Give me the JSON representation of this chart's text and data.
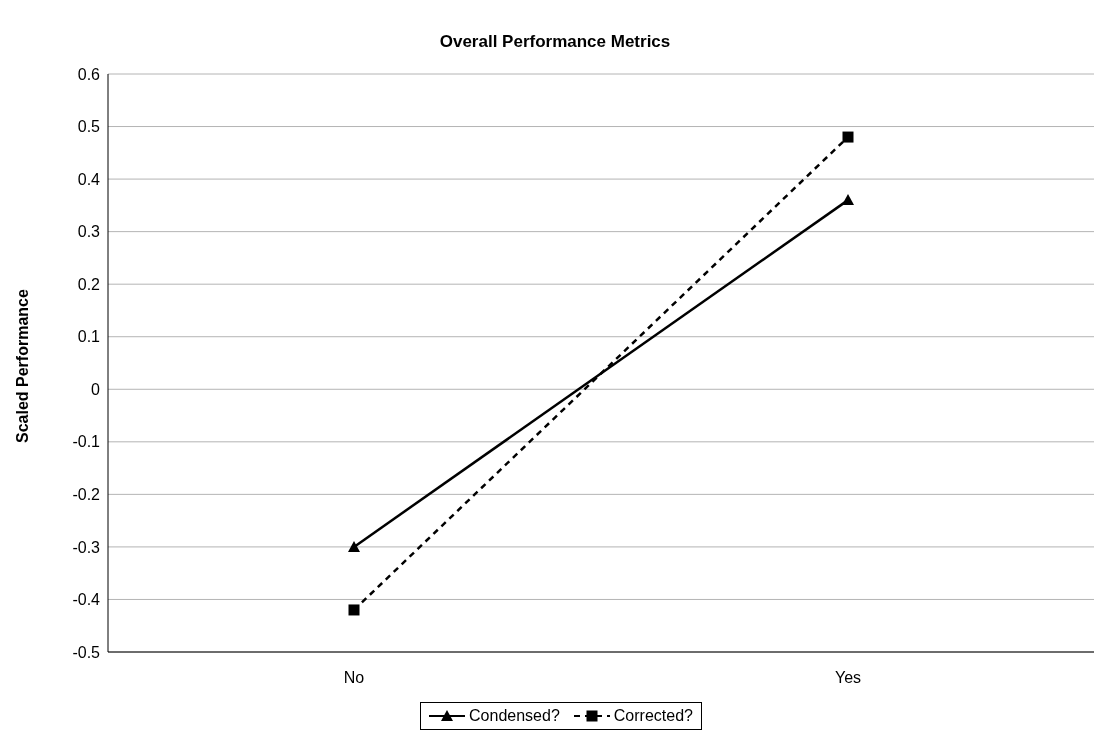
{
  "chart_data": {
    "type": "line",
    "title": "Overall Performance Metrics",
    "ylabel": "Scaled Performance",
    "categories": [
      "No",
      "Yes"
    ],
    "series": [
      {
        "name": "Condensed?",
        "color": "#000000",
        "values": [
          -0.3,
          0.36
        ],
        "marker": "triangle",
        "line_style": "solid"
      },
      {
        "name": "Corrected?",
        "color": "#000000",
        "values": [
          -0.42,
          0.48
        ],
        "marker": "square",
        "line_style": "dashed"
      }
    ],
    "ylim": [
      -0.5,
      0.6
    ],
    "yticks": [
      -0.5,
      -0.4,
      -0.3,
      -0.2,
      -0.1,
      0,
      0.1,
      0.2,
      0.3,
      0.4,
      0.5,
      0.6
    ],
    "grid": "y",
    "legend": "bottom"
  }
}
